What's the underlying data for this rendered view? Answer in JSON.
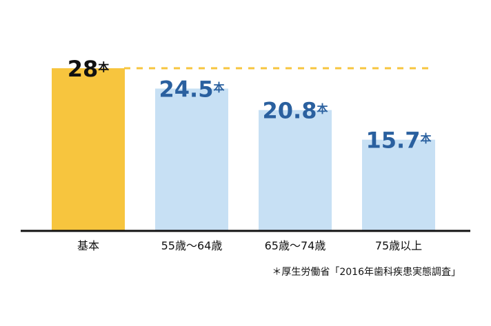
{
  "chart_data": {
    "type": "bar",
    "categories": [
      "基本",
      "55歳〜64歳",
      "65歳〜74歳",
      "75歳以上"
    ],
    "values": [
      28,
      24.5,
      20.8,
      15.7
    ],
    "unit": "本",
    "colors": [
      "#f7c53e",
      "#c7e0f4",
      "#c7e0f4",
      "#c7e0f4"
    ],
    "label_colors": [
      "#111111",
      "#2a609f",
      "#2a609f",
      "#2a609f"
    ],
    "ylim": [
      0,
      28
    ],
    "reference_line": true,
    "source": "＊厚生労働省「2016年歯科疾患実態調査」"
  }
}
